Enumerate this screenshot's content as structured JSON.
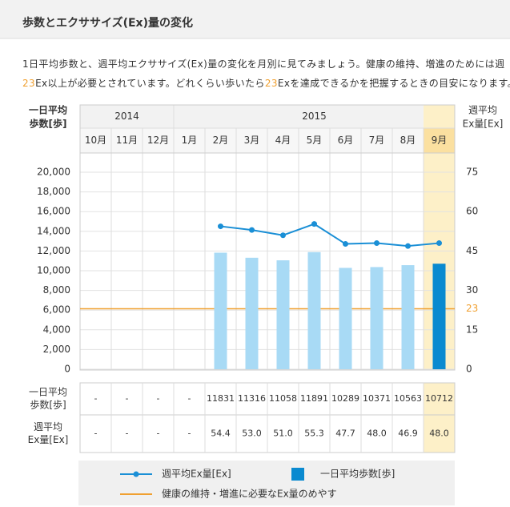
{
  "title": "歩数とエクササイズ(Ex)量の変化",
  "description": [
    [
      {
        "text": "1日平均歩数と、週平均エクササイズ(Ex)量の変化を月別に見てみましょう。健康の維持、増進のためには週"
      }
    ],
    [
      {
        "text": "23",
        "accent": true
      },
      {
        "text": "Ex以上が必要とされています。どれくらい歩いたら"
      },
      {
        "text": "23",
        "accent": true
      },
      {
        "text": "Exを達成できるかを把握するときの目安になります。"
      }
    ]
  ],
  "chart_data": {
    "type": "bar-line",
    "y_label": [
      "一日平均",
      "歩数[歩]"
    ],
    "y2_label": [
      "週平均",
      "Ex量[Ex]"
    ],
    "year_groups": [
      {
        "label": "2014",
        "count": 3
      },
      {
        "label": "2015",
        "count": 9
      }
    ],
    "categories": [
      "10月",
      "11月",
      "12月",
      "1月",
      "2月",
      "3月",
      "4月",
      "5月",
      "6月",
      "7月",
      "8月",
      "9月"
    ],
    "highlight_category": "9月",
    "series": [
      {
        "name": "一日平均歩数[歩]",
        "type": "bar",
        "color": "#a8daf5",
        "highlight_color": "#0a8ad0",
        "table_label": [
          "一日平均",
          "歩数[歩]"
        ],
        "values": [
          null,
          null,
          null,
          null,
          11831,
          11316,
          11058,
          11891,
          10289,
          10371,
          10563,
          10712
        ],
        "value_labels": [
          "-",
          "-",
          "-",
          "-",
          "11831",
          "11316",
          "11058",
          "11891",
          "10289",
          "10371",
          "10563",
          "10712"
        ]
      },
      {
        "name": "週平均Ex量[Ex]",
        "type": "line",
        "axis": "y2",
        "color": "#1a8fd6",
        "table_label": [
          "週平均",
          "Ex量[Ex]"
        ],
        "values": [
          null,
          null,
          null,
          null,
          54.4,
          53.0,
          51.0,
          55.3,
          47.7,
          48.0,
          46.9,
          48.0
        ],
        "value_labels": [
          "-",
          "-",
          "-",
          "-",
          "54.4",
          "53.0",
          "51.0",
          "55.3",
          "47.7",
          "48.0",
          "46.9",
          "48.0"
        ]
      }
    ],
    "reference_line": {
      "value": 23,
      "color": "#f0a030",
      "name": "健康の維持・増進に必要なEx量のめやす"
    },
    "ylim": [
      0,
      20000
    ],
    "yticks": [
      {
        "value": 0,
        "label": "0"
      },
      {
        "value": 2000,
        "label": "2,000"
      },
      {
        "value": 4000,
        "label": "4,000"
      },
      {
        "value": 6000,
        "label": "6,000"
      },
      {
        "value": 8000,
        "label": "8,000"
      },
      {
        "value": 10000,
        "label": "10,000"
      },
      {
        "value": 12000,
        "label": "12,000"
      },
      {
        "value": 14000,
        "label": "14,000"
      },
      {
        "value": 16000,
        "label": "16,000"
      },
      {
        "value": 18000,
        "label": "18,000"
      },
      {
        "value": 20000,
        "label": "20,000"
      }
    ],
    "y2lim": [
      0,
      75
    ],
    "y2ticks": [
      0,
      15,
      30,
      45,
      60,
      75
    ],
    "grid": true
  }
}
